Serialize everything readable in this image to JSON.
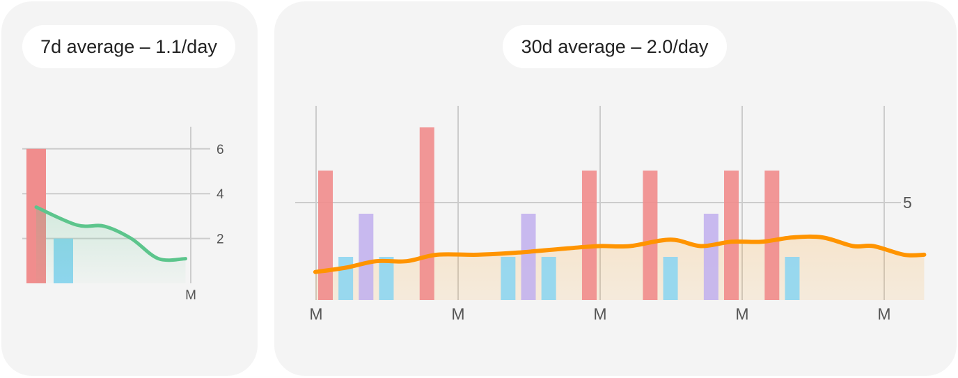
{
  "cards": {
    "week": {
      "title": "7d average – 1.1/day"
    },
    "month": {
      "title": "30d average – 2.0/day"
    }
  },
  "colors": {
    "red": "#f08d8d",
    "blue": "#8fd6f0",
    "purple": "#c3b3ee",
    "green_line": "#5cc58c",
    "orange_line": "#ff9400",
    "card_bg": "#f4f4f4",
    "grid": "#cccccc"
  },
  "chart_data": [
    {
      "type": "bar",
      "title": "7d average – 1.1/day",
      "x_tick_labels": [
        "M"
      ],
      "y_ticks": [
        2,
        4,
        6
      ],
      "ylim": [
        0,
        7
      ],
      "grid": true,
      "days": 7,
      "bars": [
        {
          "day": 0,
          "value": 6,
          "color": "red"
        },
        {
          "day": 1,
          "value": 2,
          "color": "blue"
        }
      ],
      "average_line": {
        "color": "green_line",
        "points": [
          [
            0,
            3.4
          ],
          [
            1.5,
            2.6
          ],
          [
            2.5,
            2.55
          ],
          [
            3.5,
            2.0
          ],
          [
            4.5,
            1.1
          ],
          [
            5.5,
            1.1
          ]
        ]
      }
    },
    {
      "type": "bar",
      "title": "30d average – 2.0/day",
      "x_tick_labels": [
        "M",
        "M",
        "M",
        "M",
        "M"
      ],
      "y_ticks": [
        5
      ],
      "ylim": [
        0,
        9
      ],
      "grid": true,
      "days": 29,
      "bars": [
        {
          "day": 0,
          "value": 6,
          "color": "red"
        },
        {
          "day": 1,
          "value": 2,
          "color": "blue"
        },
        {
          "day": 2,
          "value": 4,
          "color": "purple"
        },
        {
          "day": 3,
          "value": 2,
          "color": "blue"
        },
        {
          "day": 5,
          "value": 8,
          "color": "red"
        },
        {
          "day": 9,
          "value": 2,
          "color": "blue"
        },
        {
          "day": 10,
          "value": 4,
          "color": "purple"
        },
        {
          "day": 11,
          "value": 2,
          "color": "blue"
        },
        {
          "day": 13,
          "value": 6,
          "color": "red"
        },
        {
          "day": 16,
          "value": 6,
          "color": "red"
        },
        {
          "day": 17,
          "value": 2,
          "color": "blue"
        },
        {
          "day": 19,
          "value": 4,
          "color": "purple"
        },
        {
          "day": 20,
          "value": 6,
          "color": "red"
        },
        {
          "day": 22,
          "value": 6,
          "color": "red"
        },
        {
          "day": 23,
          "value": 2,
          "color": "blue"
        }
      ],
      "average_line": {
        "color": "orange_line",
        "points": [
          [
            -0.5,
            1.3
          ],
          [
            1,
            1.5
          ],
          [
            2.5,
            1.8
          ],
          [
            4,
            1.8
          ],
          [
            5.5,
            2.1
          ],
          [
            7.5,
            2.1
          ],
          [
            9.5,
            2.2
          ],
          [
            12,
            2.4
          ],
          [
            13.5,
            2.5
          ],
          [
            15,
            2.5
          ],
          [
            17,
            2.8
          ],
          [
            18.5,
            2.5
          ],
          [
            20,
            2.7
          ],
          [
            21.5,
            2.7
          ],
          [
            23,
            2.9
          ],
          [
            24.5,
            2.9
          ],
          [
            26,
            2.5
          ],
          [
            27,
            2.5
          ],
          [
            28.5,
            2.1
          ],
          [
            29.5,
            2.1
          ]
        ]
      }
    }
  ]
}
